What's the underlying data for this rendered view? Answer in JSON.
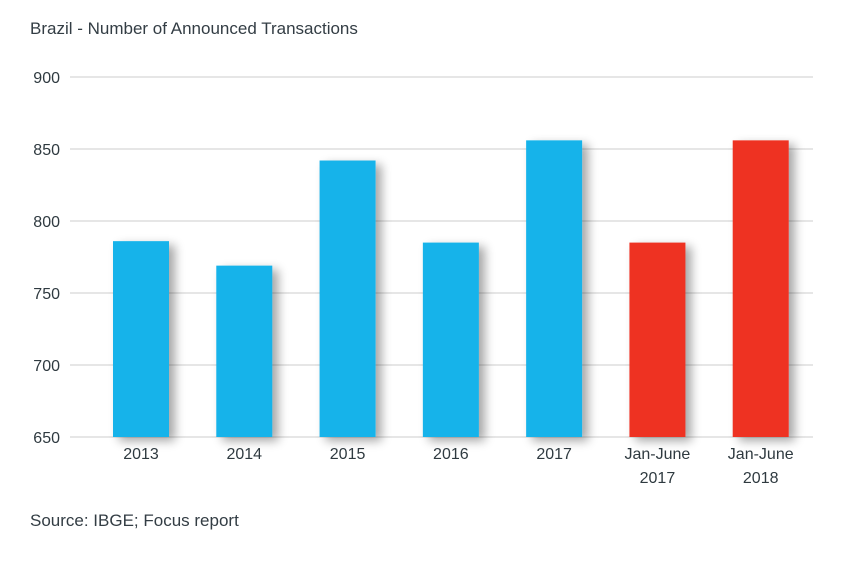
{
  "title": "Brazil - Number of Announced Transactions",
  "source": "Source: IBGE; Focus report",
  "colors": {
    "blue": "#15b3ea",
    "red": "#ee3124",
    "grid": "#cccccc",
    "text": "#2f3a40"
  },
  "chart_data": {
    "type": "bar",
    "title": "Brazil - Number of Announced Transactions",
    "categories": [
      "2013",
      "2014",
      "2015",
      "2016",
      "2017",
      "Jan-June 2017",
      "Jan-June 2018"
    ],
    "category_lines": [
      [
        "2013"
      ],
      [
        "2014"
      ],
      [
        "2015"
      ],
      [
        "2016"
      ],
      [
        "2017"
      ],
      [
        "Jan-June",
        "2017"
      ],
      [
        "Jan-June",
        "2018"
      ]
    ],
    "values": [
      786,
      769,
      842,
      785,
      856,
      785,
      856
    ],
    "bar_colors": [
      "#15b3ea",
      "#15b3ea",
      "#15b3ea",
      "#15b3ea",
      "#15b3ea",
      "#ee3124",
      "#ee3124"
    ],
    "yticks": [
      650,
      700,
      750,
      800,
      850,
      900
    ],
    "ylim": [
      650,
      900
    ],
    "xlabel": "",
    "ylabel": "",
    "grid": true,
    "legend": "none"
  }
}
